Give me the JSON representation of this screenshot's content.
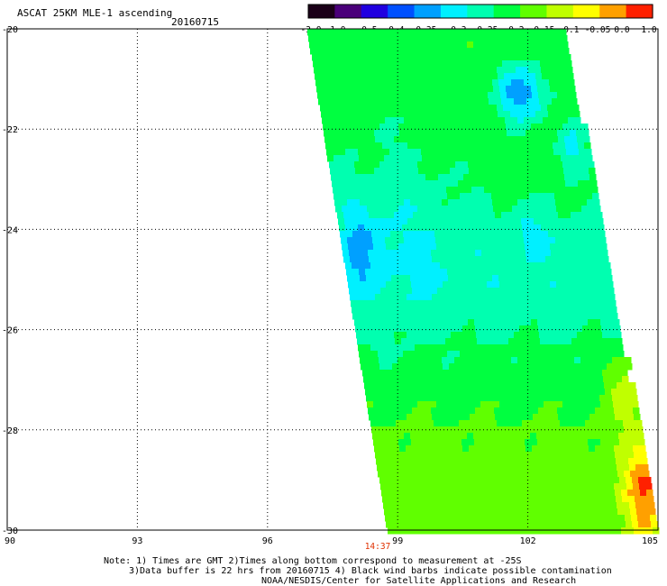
{
  "header": {
    "title": "ASCAT 25KM MLE-1 ascending",
    "date": "20160715"
  },
  "colorbar": {
    "labels": [
      "-3.0",
      "-1.0",
      "-0.5",
      "-0.4",
      "-0.35",
      "-0.3",
      "-0.25",
      "-0.2",
      "-0.15",
      "-0.1",
      "-0.05",
      "0.0",
      "1.0"
    ],
    "colors": [
      "#1a0018",
      "#4a007a",
      "#2000e0",
      "#0050ff",
      "#00a0ff",
      "#00f0ff",
      "#00ffb0",
      "#00ff40",
      "#60ff00",
      "#c0ff00",
      "#ffff00",
      "#ffa000",
      "#ff2000"
    ]
  },
  "map": {
    "lat_labels": [
      "-20",
      "-22",
      "-24",
      "-26",
      "-28",
      "-30"
    ],
    "lon_labels": [
      "90",
      "93",
      "96",
      "99",
      "102",
      "105"
    ],
    "time_label": "14:37",
    "time_color": "#e03000"
  },
  "notes": {
    "line1": "Note: 1) Times are GMT 2)Times along bottom correspond to measurement at -25S",
    "line2": "3)Data buffer is 22 hrs from 20160715 4) Black wind barbs indicate possible contamination",
    "line3": "NOAA/NESDIS/Center for Satellite Applications and Research"
  }
}
